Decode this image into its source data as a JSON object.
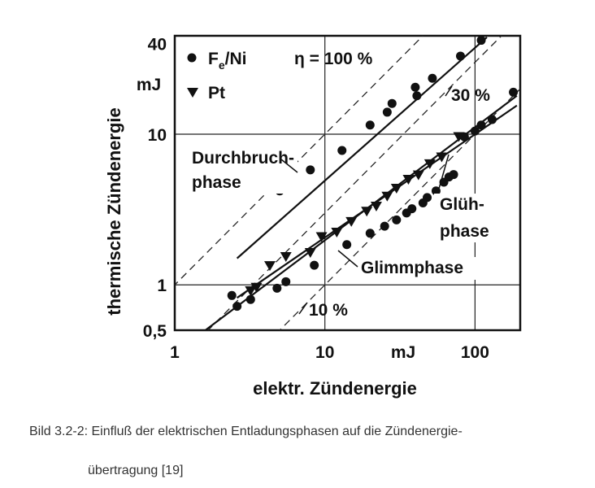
{
  "chart_data": {
    "type": "scatter",
    "xscale": "log",
    "yscale": "log",
    "xlim": [
      1,
      200
    ],
    "ylim": [
      0.5,
      45
    ],
    "xlabel": "elektr. Zündenergie",
    "ylabel": "thermische Zündenergie",
    "x_unit": "mJ",
    "y_unit": "mJ",
    "x_ticks": [
      "1",
      "10",
      "100"
    ],
    "y_ticks": [
      "0,5",
      "1",
      "10",
      "40"
    ],
    "grid": true,
    "legend": {
      "position": "top-left",
      "entries": [
        {
          "marker": "circle",
          "label_main": "F",
          "label_sub": "e",
          "label_rest": "/Ni"
        },
        {
          "marker": "triangle-down",
          "label": "Pt"
        }
      ]
    },
    "efficiency_lines": [
      {
        "label": "η = 100 %",
        "ratio": 1.0
      },
      {
        "label": "30 %",
        "ratio": 0.3
      },
      {
        "label": "10 %",
        "ratio": 0.1
      }
    ],
    "annotations": [
      {
        "text_line1": "Durchbruch-",
        "text_line2": "phase"
      },
      {
        "text_line1": "Glüh-",
        "text_line2": "phase"
      },
      {
        "text_line1": "Glimmphase",
        "text_line2": ""
      }
    ],
    "series": [
      {
        "name": "Fe/Ni",
        "marker": "circle",
        "points": [
          [
            5,
            4.2
          ],
          [
            8,
            5.8
          ],
          [
            13,
            7.8
          ],
          [
            20,
            11.5
          ],
          [
            26,
            14
          ],
          [
            28,
            16
          ],
          [
            40,
            20.5
          ],
          [
            41,
            18
          ],
          [
            52,
            23.5
          ],
          [
            80,
            33
          ],
          [
            110,
            42
          ],
          [
            2.4,
            0.85
          ],
          [
            2.6,
            0.72
          ],
          [
            3.2,
            0.8
          ],
          [
            4.8,
            0.95
          ],
          [
            5.5,
            1.05
          ],
          [
            8.5,
            1.35
          ],
          [
            14,
            1.85
          ],
          [
            20,
            2.2
          ],
          [
            25,
            2.45
          ],
          [
            30,
            2.7
          ],
          [
            35,
            3.0
          ],
          [
            38,
            3.2
          ],
          [
            45,
            3.5
          ],
          [
            48,
            3.8
          ],
          [
            55,
            4.2
          ],
          [
            62,
            4.8
          ],
          [
            67,
            5.2
          ],
          [
            72,
            5.4
          ],
          [
            85,
            9.6
          ],
          [
            100,
            10.5
          ],
          [
            110,
            11.5
          ],
          [
            130,
            12.5
          ],
          [
            180,
            19
          ]
        ]
      },
      {
        "name": "Pt",
        "marker": "triangle-down",
        "points": [
          [
            3.2,
            0.92
          ],
          [
            4.3,
            1.35
          ],
          [
            5.5,
            1.55
          ],
          [
            8,
            1.65
          ],
          [
            9.5,
            2.1
          ],
          [
            12,
            2.25
          ],
          [
            15,
            2.65
          ],
          [
            19,
            3.1
          ],
          [
            22,
            3.35
          ],
          [
            26,
            3.9
          ],
          [
            30,
            4.4
          ],
          [
            36,
            5.05
          ],
          [
            42,
            5.4
          ],
          [
            50,
            6.4
          ],
          [
            60,
            7.1
          ],
          [
            78,
            9.7
          ],
          [
            3.5,
            0.97
          ]
        ]
      }
    ],
    "fit_lines": [
      {
        "name": "Durchbruchphase",
        "x": [
          2.6,
          120
        ],
        "y": [
          1.5,
          44
        ]
      },
      {
        "name": "Glühphase",
        "x": [
          2.6,
          190
        ],
        "y": [
          0.82,
          15.5
        ]
      },
      {
        "name": "Glimmphase",
        "x": [
          1.6,
          190
        ],
        "y": [
          0.5,
          18
        ]
      }
    ]
  },
  "caption": {
    "line1": "Bild 3.2-2: Einfluß der elektrischen Entladungsphasen auf die Zündenergie-",
    "line2": "übertragung [19]"
  }
}
